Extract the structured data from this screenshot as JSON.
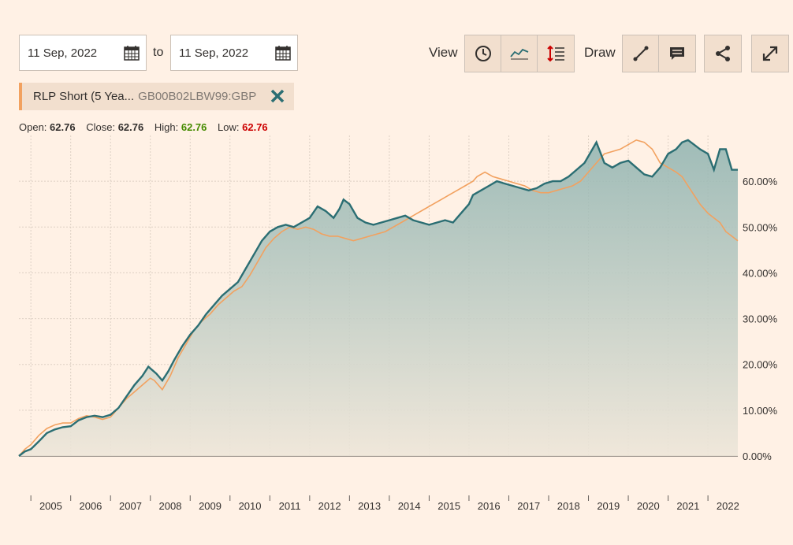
{
  "toolbar": {
    "date_from": "11 Sep, 2022",
    "date_to": "11 Sep, 2022",
    "to_label": "to",
    "view_label": "View",
    "draw_label": "Draw"
  },
  "icons": {
    "calendar": "calendar-icon",
    "clock": "clock-icon",
    "line_chart": "line-chart-icon",
    "indicators": "indicators-icon",
    "trend_line": "trend-line-icon",
    "comment": "comment-icon",
    "share": "share-icon",
    "fullscreen": "fullscreen-icon",
    "close": "close-icon"
  },
  "series_tag": {
    "name": "RLP Short (5 Yea...",
    "symbol": "GB00B02LBW99:GBP"
  },
  "ohlc": {
    "open_label": "Open:",
    "open": "62.76",
    "close_label": "Close:",
    "close": "62.76",
    "high_label": "High:",
    "high": "62.76",
    "low_label": "Low:",
    "low": "62.76"
  },
  "colors": {
    "background": "#fff1e5",
    "primary_line": "#2b6e73",
    "comparison_line": "#f2a15f",
    "high": "#458b00",
    "low": "#cc0000"
  },
  "chart_data": {
    "type": "area",
    "x_ticks": [
      "2005",
      "2006",
      "2007",
      "2008",
      "2009",
      "2010",
      "2011",
      "2012",
      "2013",
      "2014",
      "2015",
      "2016",
      "2017",
      "2018",
      "2019",
      "2020",
      "2021",
      "2022"
    ],
    "y_ticks": [
      "0.00%",
      "10.00%",
      "20.00%",
      "30.00%",
      "40.00%",
      "50.00%",
      "60.00%"
    ],
    "ylim": [
      0,
      70
    ],
    "xlim": [
      2004.7,
      2022.75
    ],
    "grid": true,
    "series": [
      {
        "x": [
          2004.7,
          2004.85,
          2005.0,
          2005.2,
          2005.4,
          2005.6,
          2005.8,
          2006.0,
          2006.2,
          2006.4,
          2006.6,
          2006.8,
          2007.0,
          2007.2,
          2007.4,
          2007.6,
          2007.8,
          2007.95,
          2008.15,
          2008.3,
          2008.45,
          2008.6,
          2008.8,
          2009.0,
          2009.2,
          2009.4,
          2009.6,
          2009.8,
          2010.0,
          2010.2,
          2010.4,
          2010.6,
          2010.8,
          2011.0,
          2011.2,
          2011.4,
          2011.6,
          2011.8,
          2012.0,
          2012.2,
          2012.4,
          2012.6,
          2012.75,
          2012.85,
          2013.0,
          2013.2,
          2013.4,
          2013.6,
          2013.8,
          2014.0,
          2014.2,
          2014.4,
          2014.6,
          2014.8,
          2015.0,
          2015.2,
          2015.4,
          2015.6,
          2015.8,
          2016.0,
          2016.1,
          2016.3,
          2016.5,
          2016.7,
          2016.9,
          2017.1,
          2017.3,
          2017.5,
          2017.7,
          2017.9,
          2018.1,
          2018.3,
          2018.5,
          2018.7,
          2018.9,
          2019.1,
          2019.2,
          2019.4,
          2019.6,
          2019.8,
          2020.0,
          2020.2,
          2020.4,
          2020.6,
          2020.8,
          2021.0,
          2021.2,
          2021.35,
          2021.5,
          2021.65,
          2021.8,
          2022.0,
          2022.15,
          2022.3,
          2022.45,
          2022.6,
          2022.75
        ],
        "y": [
          0.0,
          1.0,
          1.5,
          3.2,
          5.0,
          5.8,
          6.3,
          6.5,
          7.8,
          8.5,
          8.8,
          8.5,
          9.0,
          10.5,
          13.0,
          15.5,
          17.5,
          19.5,
          18.0,
          16.5,
          18.5,
          21.0,
          24.0,
          26.5,
          28.5,
          31.0,
          33.0,
          35.0,
          36.5,
          38.0,
          41.0,
          44.0,
          47.0,
          49.0,
          50.0,
          50.5,
          50.0,
          51.0,
          52.0,
          54.5,
          53.5,
          52.0,
          54.0,
          56.0,
          55.0,
          52.0,
          51.0,
          50.5,
          51.0,
          51.5,
          52.0,
          52.5,
          51.5,
          51.0,
          50.5,
          51.0,
          51.5,
          51.0,
          53.0,
          55.0,
          57.0,
          58.0,
          59.0,
          60.0,
          59.5,
          59.0,
          58.5,
          58.0,
          58.5,
          59.5,
          60.0,
          60.0,
          61.0,
          62.5,
          64.0,
          67.0,
          68.5,
          64.0,
          63.0,
          64.0,
          64.5,
          63.0,
          61.5,
          61.0,
          63.0,
          66.0,
          67.0,
          68.5,
          69.0,
          68.0,
          67.0,
          66.0,
          62.5,
          67.0,
          67.0,
          62.5,
          62.5
        ],
        "color": "#2b6e73"
      },
      {
        "x": [
          2004.7,
          2004.85,
          2005.0,
          2005.2,
          2005.4,
          2005.6,
          2005.8,
          2006.0,
          2006.2,
          2006.4,
          2006.6,
          2006.8,
          2007.0,
          2007.2,
          2007.4,
          2007.6,
          2007.8,
          2008.0,
          2008.1,
          2008.3,
          2008.5,
          2008.7,
          2008.9,
          2009.1,
          2009.3,
          2009.5,
          2009.7,
          2009.9,
          2010.1,
          2010.3,
          2010.5,
          2010.7,
          2010.9,
          2011.1,
          2011.3,
          2011.5,
          2011.7,
          2011.9,
          2012.1,
          2012.3,
          2012.5,
          2012.7,
          2012.9,
          2013.1,
          2013.3,
          2013.5,
          2013.7,
          2013.9,
          2014.1,
          2014.3,
          2014.5,
          2014.7,
          2014.9,
          2015.1,
          2015.3,
          2015.5,
          2015.7,
          2015.9,
          2016.1,
          2016.2,
          2016.4,
          2016.6,
          2016.8,
          2017.0,
          2017.2,
          2017.4,
          2017.6,
          2017.8,
          2018.0,
          2018.2,
          2018.4,
          2018.6,
          2018.8,
          2019.0,
          2019.2,
          2019.4,
          2019.6,
          2019.8,
          2020.0,
          2020.2,
          2020.4,
          2020.6,
          2020.8,
          2021.0,
          2021.2,
          2021.35,
          2021.5,
          2021.65,
          2021.8,
          2022.0,
          2022.15,
          2022.3,
          2022.45,
          2022.6,
          2022.75
        ],
        "y": [
          0.0,
          1.5,
          2.5,
          4.5,
          6.0,
          6.8,
          7.2,
          7.2,
          8.2,
          8.8,
          8.5,
          8.0,
          8.5,
          10.5,
          12.5,
          14.0,
          15.5,
          17.0,
          16.5,
          14.5,
          17.5,
          21.5,
          24.5,
          27.5,
          29.5,
          31.0,
          33.0,
          34.5,
          36.0,
          37.0,
          39.5,
          42.5,
          45.5,
          47.5,
          49.0,
          50.0,
          49.5,
          50.0,
          49.5,
          48.5,
          48.0,
          48.0,
          47.5,
          47.0,
          47.5,
          48.0,
          48.5,
          49.0,
          50.0,
          51.0,
          52.0,
          53.0,
          54.0,
          55.0,
          56.0,
          57.0,
          58.0,
          59.0,
          60.0,
          61.0,
          62.0,
          61.0,
          60.5,
          60.0,
          59.5,
          59.0,
          58.0,
          57.5,
          57.5,
          58.0,
          58.5,
          59.0,
          60.0,
          62.0,
          64.0,
          66.0,
          66.5,
          67.0,
          68.0,
          69.0,
          68.5,
          67.0,
          64.0,
          63.0,
          62.0,
          61.0,
          59.0,
          57.0,
          55.0,
          53.0,
          52.0,
          51.0,
          49.0,
          48.0,
          47.0
        ],
        "color": "#f2a15f"
      }
    ]
  }
}
